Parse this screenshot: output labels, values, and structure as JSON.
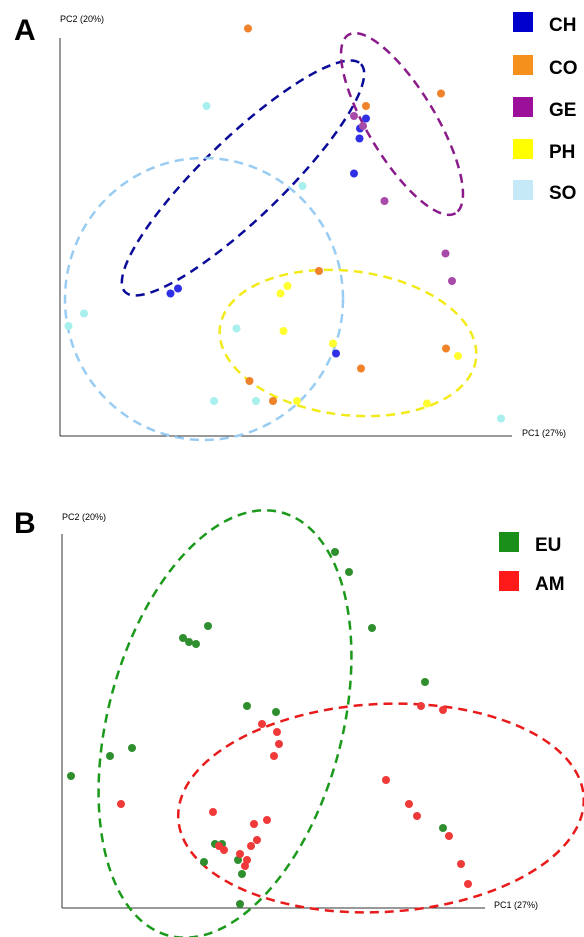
{
  "chart_data": [
    {
      "panel": "A",
      "type": "scatter",
      "xlabel": "PC1 (27%)",
      "ylabel": "PC2 (20%)",
      "legend": [
        {
          "label": "CH",
          "color": "#0000cc"
        },
        {
          "label": "CO",
          "color": "#f5901c"
        },
        {
          "label": "GE",
          "color": "#9b0f9b"
        },
        {
          "label": "PH",
          "color": "#ffff00"
        },
        {
          "label": "SO",
          "color": "#c6e9f7"
        }
      ],
      "series": [
        {
          "name": "CH",
          "color": "#2f2fe6",
          "points": [
            [
              306,
              63.5
            ],
            [
              300,
              61.5
            ],
            [
              299.5,
              59.5
            ],
            [
              294,
              52.5
            ],
            [
              110.5,
              28.5
            ],
            [
              118,
              29.5
            ],
            [
              276,
              16.5
            ]
          ]
        },
        {
          "name": "CO",
          "color": "#f0822a",
          "points": [
            [
              306,
              66
            ],
            [
              188,
              81.5
            ],
            [
              381,
              68.5
            ],
            [
              259,
              33
            ],
            [
              189.5,
              11
            ],
            [
              213,
              7
            ],
            [
              301,
              13.5
            ],
            [
              386,
              17.5
            ]
          ]
        },
        {
          "name": "GE",
          "color": "#a74aa8",
          "points": [
            [
              294,
              64
            ],
            [
              303,
              62
            ],
            [
              324.5,
              47
            ],
            [
              385.5,
              36.5
            ],
            [
              392,
              31
            ]
          ]
        },
        {
          "name": "PH",
          "color": "#ffff30",
          "points": [
            [
              227.5,
              30
            ],
            [
              220.5,
              28.5
            ],
            [
              223.5,
              21
            ],
            [
              273,
              18.5
            ],
            [
              237,
              7
            ],
            [
              398,
              16
            ],
            [
              367,
              6.5
            ]
          ]
        },
        {
          "name": "SO",
          "color": "#a8f0ee",
          "points": [
            [
              146.5,
              66
            ],
            [
              242.5,
              50
            ],
            [
              8.5,
              22
            ],
            [
              24,
              24.5
            ],
            [
              176.5,
              21.5
            ],
            [
              154,
              7
            ],
            [
              196,
              7
            ],
            [
              441,
              3.5
            ]
          ]
        }
      ]
    },
    {
      "panel": "B",
      "type": "scatter",
      "xlabel": "PC1 (27%)",
      "ylabel": "PC2 (20%)",
      "legend": [
        {
          "label": "EU",
          "color": "#1a8f1a"
        },
        {
          "label": "AM",
          "color": "#ff1a1a"
        }
      ],
      "series": [
        {
          "name": "EU",
          "color": "#2f8f2f",
          "points": [
            [
              273,
              89
            ],
            [
              287,
              84
            ],
            [
              146,
              70.5
            ],
            [
              121,
              67.5
            ],
            [
              127,
              66.5
            ],
            [
              134,
              66
            ],
            [
              310,
              70
            ],
            [
              363,
              56.5
            ],
            [
              185,
              50.5
            ],
            [
              214,
              49
            ],
            [
              70,
              40
            ],
            [
              48,
              38
            ],
            [
              9,
              33
            ],
            [
              381,
              20
            ],
            [
              153,
              16
            ],
            [
              160,
              16
            ],
            [
              142,
              11.5
            ],
            [
              176,
              12
            ],
            [
              180,
              8.5
            ],
            [
              178,
              1
            ]
          ]
        },
        {
          "name": "AM",
          "color": "#f03a3a",
          "points": [
            [
              359,
              50.5
            ],
            [
              381,
              49.5
            ],
            [
              200,
              46
            ],
            [
              215,
              44
            ],
            [
              217,
              41
            ],
            [
              212,
              38
            ],
            [
              324,
              32
            ],
            [
              59,
              26
            ],
            [
              347,
              26
            ],
            [
              355,
              23
            ],
            [
              151,
              24
            ],
            [
              205,
              22
            ],
            [
              192,
              21
            ],
            [
              195,
              17
            ],
            [
              157,
              15.5
            ],
            [
              189,
              15.5
            ],
            [
              162,
              14.5
            ],
            [
              178,
              13.5
            ],
            [
              185,
              12
            ],
            [
              183,
              10.5
            ],
            [
              387,
              18
            ],
            [
              399,
              11
            ],
            [
              406,
              6
            ]
          ]
        }
      ]
    }
  ]
}
